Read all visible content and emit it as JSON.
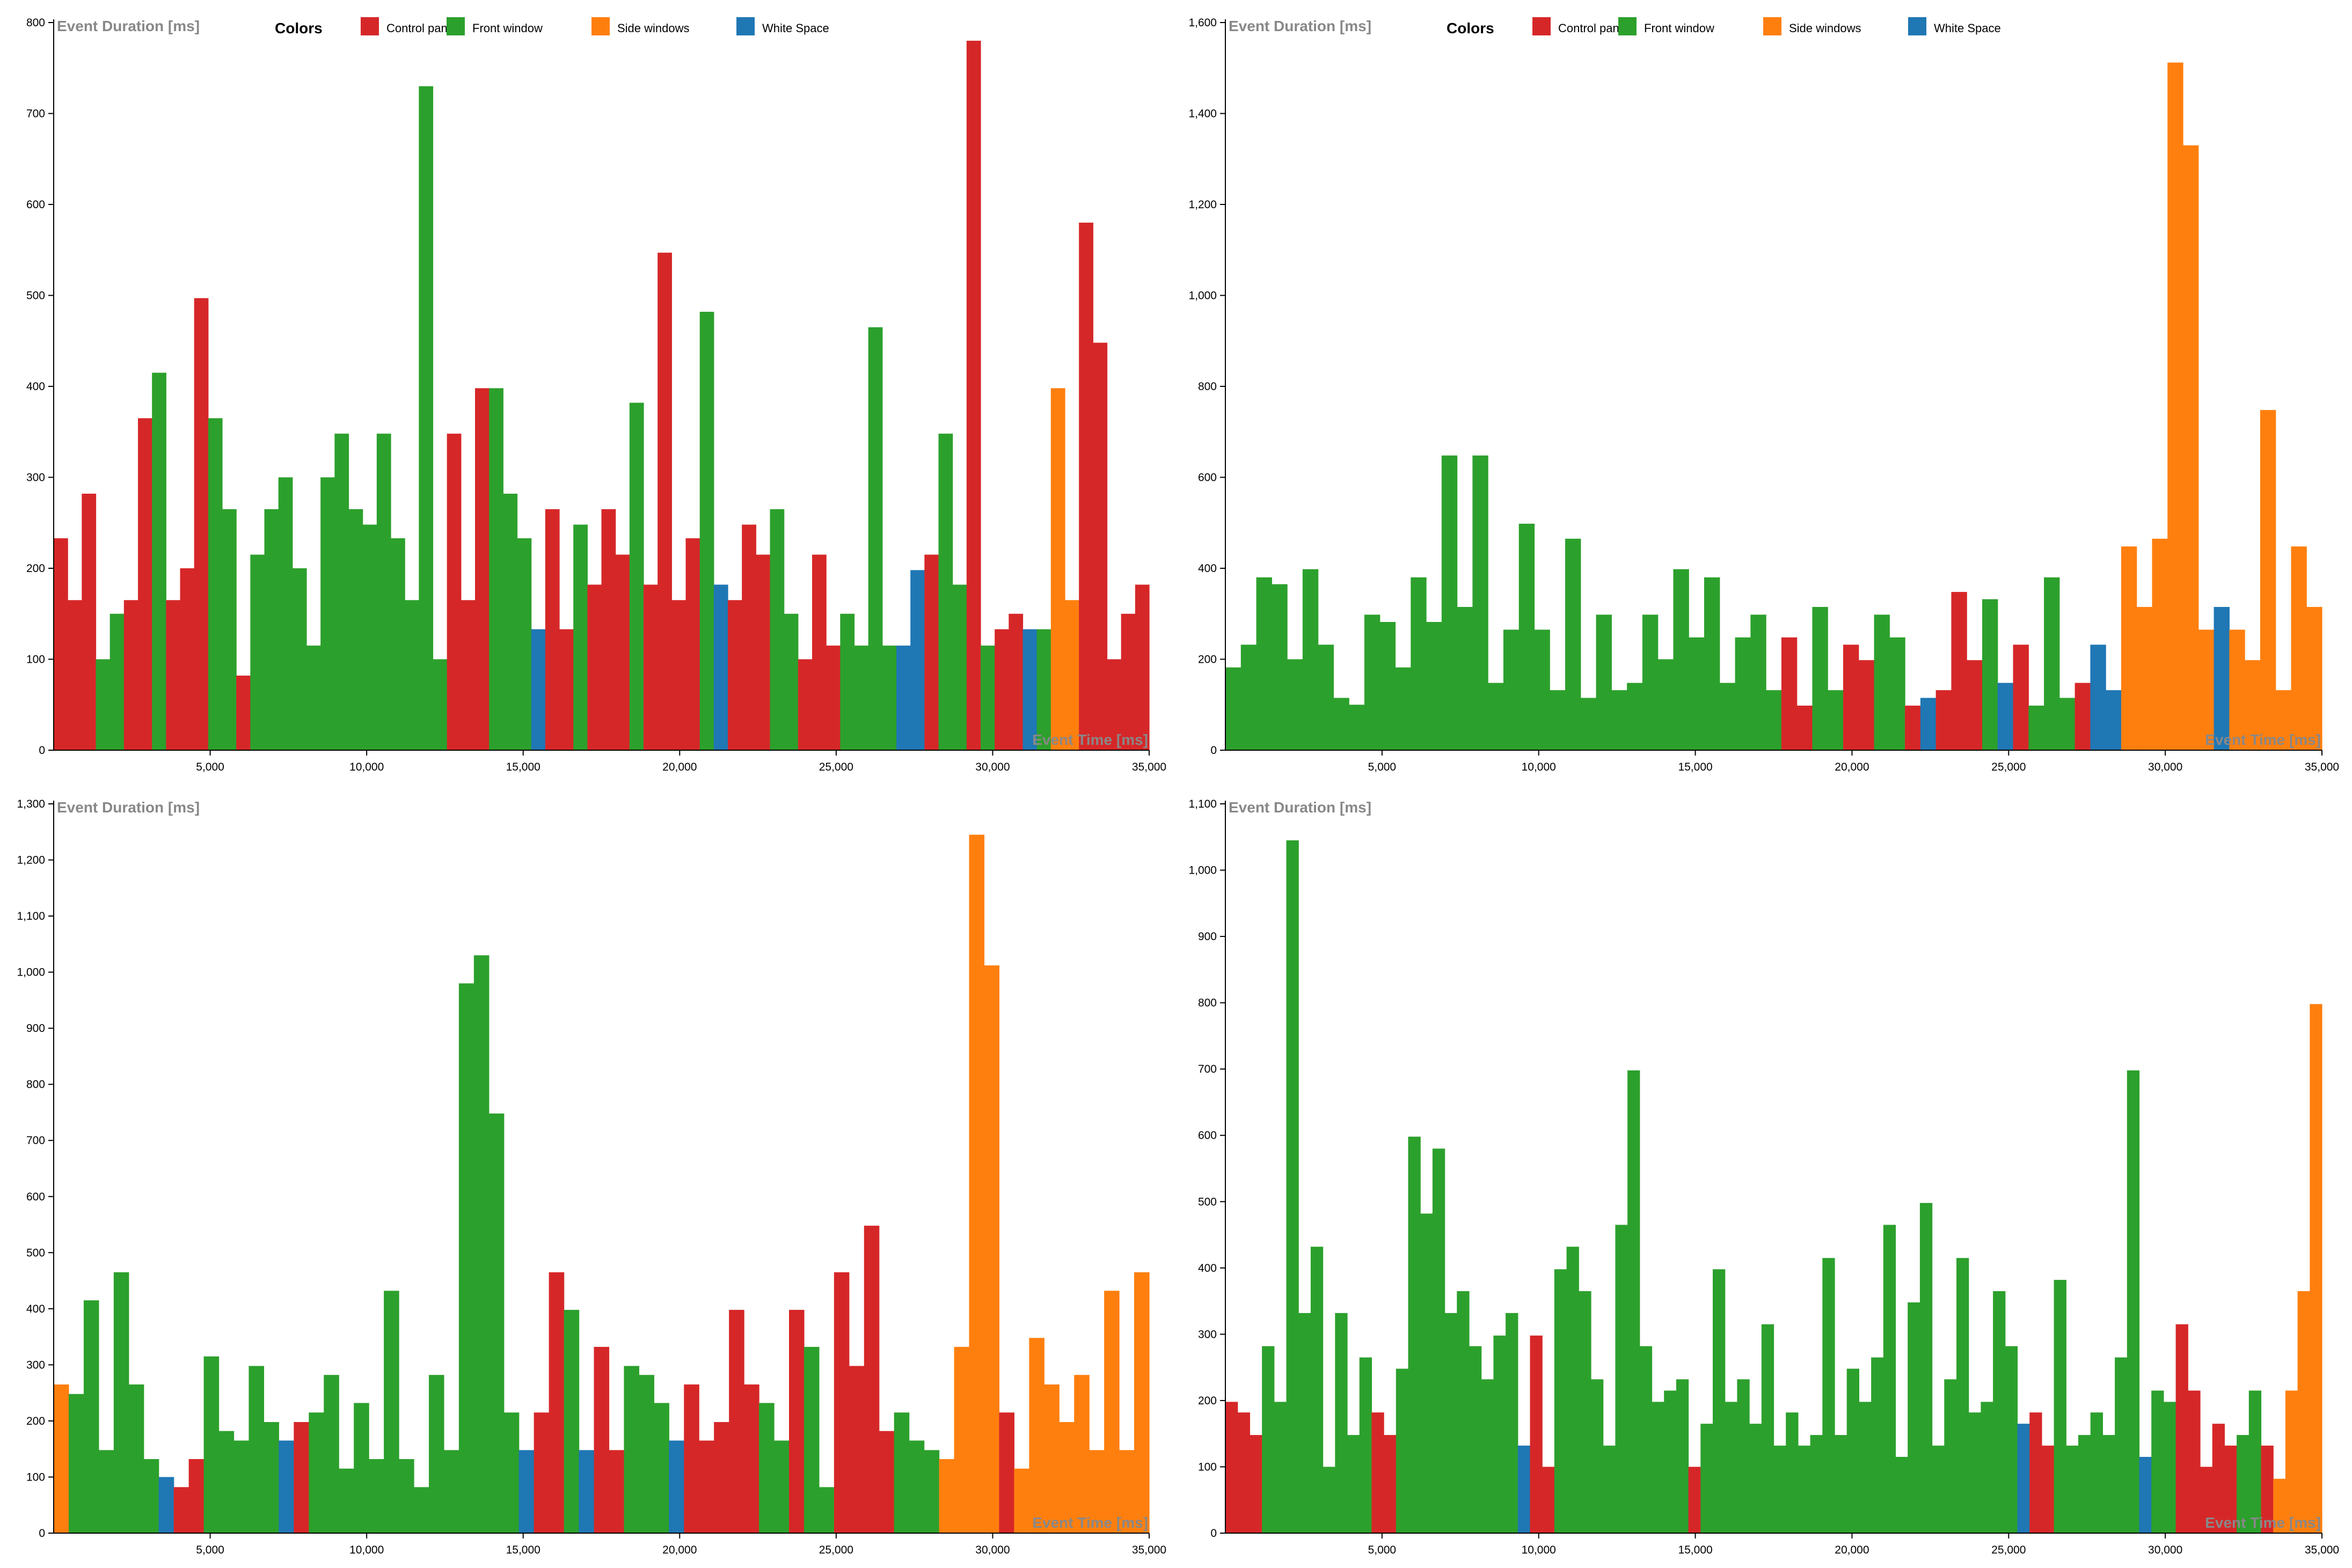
{
  "colors": {
    "Control panels": "#d62728",
    "Front window": "#2ca02c",
    "Side windows": "#ff7f0e",
    "White Space": "#1f77b4"
  },
  "legend": {
    "title": "Colors",
    "items": [
      "Control panels",
      "Front window",
      "Side windows",
      "White Space"
    ]
  },
  "chart_data": [
    {
      "type": "bar",
      "title": "",
      "ylabel": "Event Duration [ms]",
      "xlabel": "Event Time [ms]",
      "xlim": [
        0,
        35000
      ],
      "ylim": [
        0,
        800
      ],
      "xticks": [
        "5,000",
        "10,000",
        "15,000",
        "20,000",
        "25,000",
        "30,000",
        "35,000"
      ],
      "yticks": [
        "0",
        "100",
        "200",
        "300",
        "400",
        "500",
        "600",
        "700",
        "800"
      ],
      "legend": true,
      "bars": [
        [
          "C",
          233
        ],
        [
          "C",
          165
        ],
        [
          "C",
          282
        ],
        [
          "F",
          100
        ],
        [
          "F",
          150
        ],
        [
          "C",
          165
        ],
        [
          "C",
          365
        ],
        [
          "F",
          415
        ],
        [
          "C",
          165
        ],
        [
          "C",
          200
        ],
        [
          "C",
          497
        ],
        [
          "F",
          365
        ],
        [
          "F",
          265
        ],
        [
          "C",
          82
        ],
        [
          "F",
          215
        ],
        [
          "F",
          265
        ],
        [
          "F",
          300
        ],
        [
          "F",
          200
        ],
        [
          "F",
          115
        ],
        [
          "F",
          300
        ],
        [
          "F",
          348
        ],
        [
          "F",
          265
        ],
        [
          "F",
          248
        ],
        [
          "F",
          348
        ],
        [
          "F",
          233
        ],
        [
          "F",
          165
        ],
        [
          "F",
          730
        ],
        [
          "F",
          100
        ],
        [
          "C",
          348
        ],
        [
          "C",
          165
        ],
        [
          "C",
          398
        ],
        [
          "F",
          398
        ],
        [
          "F",
          282
        ],
        [
          "F",
          233
        ],
        [
          "W",
          133
        ],
        [
          "C",
          265
        ],
        [
          "C",
          133
        ],
        [
          "F",
          248
        ],
        [
          "C",
          182
        ],
        [
          "C",
          265
        ],
        [
          "C",
          215
        ],
        [
          "F",
          382
        ],
        [
          "C",
          182
        ],
        [
          "C",
          547
        ],
        [
          "C",
          165
        ],
        [
          "C",
          233
        ],
        [
          "F",
          482
        ],
        [
          "W",
          182
        ],
        [
          "C",
          165
        ],
        [
          "C",
          248
        ],
        [
          "C",
          215
        ],
        [
          "F",
          265
        ],
        [
          "F",
          150
        ],
        [
          "C",
          100
        ],
        [
          "C",
          215
        ],
        [
          "C",
          115
        ],
        [
          "F",
          150
        ],
        [
          "F",
          115
        ],
        [
          "F",
          465
        ],
        [
          "F",
          115
        ],
        [
          "W",
          115
        ],
        [
          "W",
          198
        ],
        [
          "C",
          215
        ],
        [
          "F",
          348
        ],
        [
          "F",
          182
        ],
        [
          "C",
          780
        ],
        [
          "F",
          115
        ],
        [
          "C",
          133
        ],
        [
          "C",
          150
        ],
        [
          "W",
          133
        ],
        [
          "F",
          133
        ],
        [
          "S",
          398
        ],
        [
          "S",
          165
        ],
        [
          "C",
          580
        ],
        [
          "C",
          448
        ],
        [
          "C",
          100
        ],
        [
          "C",
          150
        ],
        [
          "C",
          182
        ]
      ]
    },
    {
      "type": "bar",
      "title": "",
      "ylabel": "Event Duration [ms]",
      "xlabel": "Event Time [ms]",
      "xlim": [
        0,
        35000
      ],
      "ylim": [
        0,
        1600
      ],
      "xticks": [
        "5,000",
        "10,000",
        "15,000",
        "20,000",
        "25,000",
        "30,000",
        "35,000"
      ],
      "yticks": [
        "0",
        "200",
        "400",
        "600",
        "800",
        "1,000",
        "1,200",
        "1,400",
        "1,600"
      ],
      "legend": true,
      "bars": [
        [
          "F",
          182
        ],
        [
          "F",
          232
        ],
        [
          "F",
          380
        ],
        [
          "F",
          365
        ],
        [
          "F",
          200
        ],
        [
          "F",
          398
        ],
        [
          "F",
          232
        ],
        [
          "F",
          115
        ],
        [
          "F",
          100
        ],
        [
          "F",
          298
        ],
        [
          "F",
          282
        ],
        [
          "F",
          182
        ],
        [
          "F",
          380
        ],
        [
          "F",
          282
        ],
        [
          "F",
          648
        ],
        [
          "F",
          315
        ],
        [
          "F",
          648
        ],
        [
          "F",
          148
        ],
        [
          "F",
          265
        ],
        [
          "F",
          498
        ],
        [
          "F",
          265
        ],
        [
          "F",
          132
        ],
        [
          "F",
          465
        ],
        [
          "F",
          115
        ],
        [
          "F",
          298
        ],
        [
          "F",
          132
        ],
        [
          "F",
          148
        ],
        [
          "F",
          298
        ],
        [
          "F",
          200
        ],
        [
          "F",
          398
        ],
        [
          "F",
          248
        ],
        [
          "F",
          380
        ],
        [
          "F",
          148
        ],
        [
          "F",
          248
        ],
        [
          "F",
          298
        ],
        [
          "F",
          132
        ],
        [
          "C",
          248
        ],
        [
          "C",
          98
        ],
        [
          "F",
          315
        ],
        [
          "F",
          132
        ],
        [
          "C",
          232
        ],
        [
          "C",
          198
        ],
        [
          "F",
          298
        ],
        [
          "F",
          248
        ],
        [
          "C",
          98
        ],
        [
          "W",
          115
        ],
        [
          "C",
          132
        ],
        [
          "C",
          348
        ],
        [
          "C",
          198
        ],
        [
          "F",
          332
        ],
        [
          "W",
          148
        ],
        [
          "C",
          232
        ],
        [
          "F",
          98
        ],
        [
          "F",
          380
        ],
        [
          "F",
          115
        ],
        [
          "C",
          148
        ],
        [
          "W",
          232
        ],
        [
          "W",
          132
        ],
        [
          "S",
          448
        ],
        [
          "S",
          315
        ],
        [
          "S",
          465
        ],
        [
          "S",
          1512
        ],
        [
          "S",
          1330
        ],
        [
          "S",
          265
        ],
        [
          "W",
          315
        ],
        [
          "S",
          265
        ],
        [
          "S",
          198
        ],
        [
          "S",
          748
        ],
        [
          "S",
          132
        ],
        [
          "S",
          448
        ],
        [
          "S",
          315
        ]
      ]
    },
    {
      "type": "bar",
      "title": "",
      "ylabel": "Event Duration [ms]",
      "xlabel": "Event Time [ms]",
      "xlim": [
        0,
        35000
      ],
      "ylim": [
        0,
        1300
      ],
      "xticks": [
        "5,000",
        "10,000",
        "15,000",
        "20,000",
        "25,000",
        "30,000",
        "35,000"
      ],
      "yticks": [
        "0",
        "100",
        "200",
        "300",
        "400",
        "500",
        "600",
        "700",
        "800",
        "900",
        "1,000",
        "1,100",
        "1,200",
        "1,300"
      ],
      "legend": false,
      "bars": [
        [
          "S",
          265
        ],
        [
          "F",
          248
        ],
        [
          "F",
          415
        ],
        [
          "F",
          148
        ],
        [
          "F",
          465
        ],
        [
          "F",
          265
        ],
        [
          "F",
          132
        ],
        [
          "W",
          100
        ],
        [
          "C",
          82
        ],
        [
          "C",
          132
        ],
        [
          "F",
          315
        ],
        [
          "F",
          182
        ],
        [
          "F",
          165
        ],
        [
          "F",
          298
        ],
        [
          "F",
          198
        ],
        [
          "W",
          165
        ],
        [
          "C",
          198
        ],
        [
          "F",
          215
        ],
        [
          "F",
          282
        ],
        [
          "F",
          115
        ],
        [
          "F",
          232
        ],
        [
          "F",
          132
        ],
        [
          "F",
          432
        ],
        [
          "F",
          132
        ],
        [
          "F",
          82
        ],
        [
          "F",
          282
        ],
        [
          "F",
          148
        ],
        [
          "F",
          980
        ],
        [
          "F",
          1030
        ],
        [
          "F",
          748
        ],
        [
          "F",
          215
        ],
        [
          "W",
          148
        ],
        [
          "C",
          215
        ],
        [
          "C",
          465
        ],
        [
          "F",
          398
        ],
        [
          "W",
          148
        ],
        [
          "C",
          332
        ],
        [
          "C",
          148
        ],
        [
          "F",
          298
        ],
        [
          "F",
          282
        ],
        [
          "F",
          232
        ],
        [
          "W",
          165
        ],
        [
          "C",
          265
        ],
        [
          "C",
          165
        ],
        [
          "C",
          198
        ],
        [
          "C",
          398
        ],
        [
          "C",
          265
        ],
        [
          "F",
          232
        ],
        [
          "F",
          165
        ],
        [
          "C",
          398
        ],
        [
          "F",
          332
        ],
        [
          "F",
          82
        ],
        [
          "C",
          465
        ],
        [
          "C",
          298
        ],
        [
          "C",
          548
        ],
        [
          "C",
          182
        ],
        [
          "F",
          215
        ],
        [
          "F",
          165
        ],
        [
          "F",
          148
        ],
        [
          "S",
          132
        ],
        [
          "S",
          332
        ],
        [
          "S",
          1245
        ],
        [
          "S",
          1012
        ],
        [
          "C",
          215
        ],
        [
          "S",
          115
        ],
        [
          "S",
          348
        ],
        [
          "S",
          265
        ],
        [
          "S",
          198
        ],
        [
          "S",
          282
        ],
        [
          "S",
          148
        ],
        [
          "S",
          432
        ],
        [
          "S",
          148
        ],
        [
          "S",
          465
        ]
      ]
    },
    {
      "type": "bar",
      "title": "",
      "ylabel": "Event Duration [ms]",
      "xlabel": "Event Time [ms]",
      "xlim": [
        0,
        35000
      ],
      "ylim": [
        0,
        1100
      ],
      "xticks": [
        "5,000",
        "10,000",
        "15,000",
        "20,000",
        "25,000",
        "30,000",
        "35,000"
      ],
      "yticks": [
        "0",
        "100",
        "200",
        "300",
        "400",
        "500",
        "600",
        "700",
        "800",
        "900",
        "1,000",
        "1,100"
      ],
      "legend": false,
      "bars": [
        [
          "C",
          198
        ],
        [
          "C",
          182
        ],
        [
          "C",
          148
        ],
        [
          "F",
          282
        ],
        [
          "F",
          198
        ],
        [
          "F",
          1045
        ],
        [
          "F",
          332
        ],
        [
          "F",
          432
        ],
        [
          "F",
          100
        ],
        [
          "F",
          332
        ],
        [
          "F",
          148
        ],
        [
          "F",
          265
        ],
        [
          "C",
          182
        ],
        [
          "C",
          148
        ],
        [
          "F",
          248
        ],
        [
          "F",
          598
        ],
        [
          "F",
          482
        ],
        [
          "F",
          580
        ],
        [
          "F",
          332
        ],
        [
          "F",
          365
        ],
        [
          "F",
          282
        ],
        [
          "F",
          232
        ],
        [
          "F",
          298
        ],
        [
          "F",
          332
        ],
        [
          "W",
          132
        ],
        [
          "C",
          298
        ],
        [
          "C",
          100
        ],
        [
          "F",
          398
        ],
        [
          "F",
          432
        ],
        [
          "F",
          365
        ],
        [
          "F",
          232
        ],
        [
          "F",
          132
        ],
        [
          "F",
          465
        ],
        [
          "F",
          698
        ],
        [
          "F",
          282
        ],
        [
          "F",
          198
        ],
        [
          "F",
          215
        ],
        [
          "F",
          232
        ],
        [
          "C",
          100
        ],
        [
          "F",
          165
        ],
        [
          "F",
          398
        ],
        [
          "F",
          198
        ],
        [
          "F",
          232
        ],
        [
          "F",
          165
        ],
        [
          "F",
          315
        ],
        [
          "F",
          132
        ],
        [
          "F",
          182
        ],
        [
          "F",
          132
        ],
        [
          "F",
          148
        ],
        [
          "F",
          415
        ],
        [
          "F",
          148
        ],
        [
          "F",
          248
        ],
        [
          "F",
          198
        ],
        [
          "F",
          265
        ],
        [
          "F",
          465
        ],
        [
          "F",
          115
        ],
        [
          "F",
          348
        ],
        [
          "F",
          498
        ],
        [
          "F",
          132
        ],
        [
          "F",
          232
        ],
        [
          "F",
          415
        ],
        [
          "F",
          182
        ],
        [
          "F",
          198
        ],
        [
          "F",
          365
        ],
        [
          "F",
          282
        ],
        [
          "W",
          165
        ],
        [
          "C",
          182
        ],
        [
          "C",
          132
        ],
        [
          "F",
          382
        ],
        [
          "F",
          132
        ],
        [
          "F",
          148
        ],
        [
          "F",
          182
        ],
        [
          "F",
          148
        ],
        [
          "F",
          265
        ],
        [
          "F",
          698
        ],
        [
          "W",
          115
        ],
        [
          "F",
          215
        ],
        [
          "F",
          198
        ],
        [
          "C",
          315
        ],
        [
          "C",
          215
        ],
        [
          "C",
          100
        ],
        [
          "C",
          165
        ],
        [
          "C",
          132
        ],
        [
          "F",
          148
        ],
        [
          "F",
          215
        ],
        [
          "C",
          132
        ],
        [
          "S",
          82
        ],
        [
          "S",
          215
        ],
        [
          "S",
          365
        ],
        [
          "S",
          798
        ]
      ]
    }
  ]
}
